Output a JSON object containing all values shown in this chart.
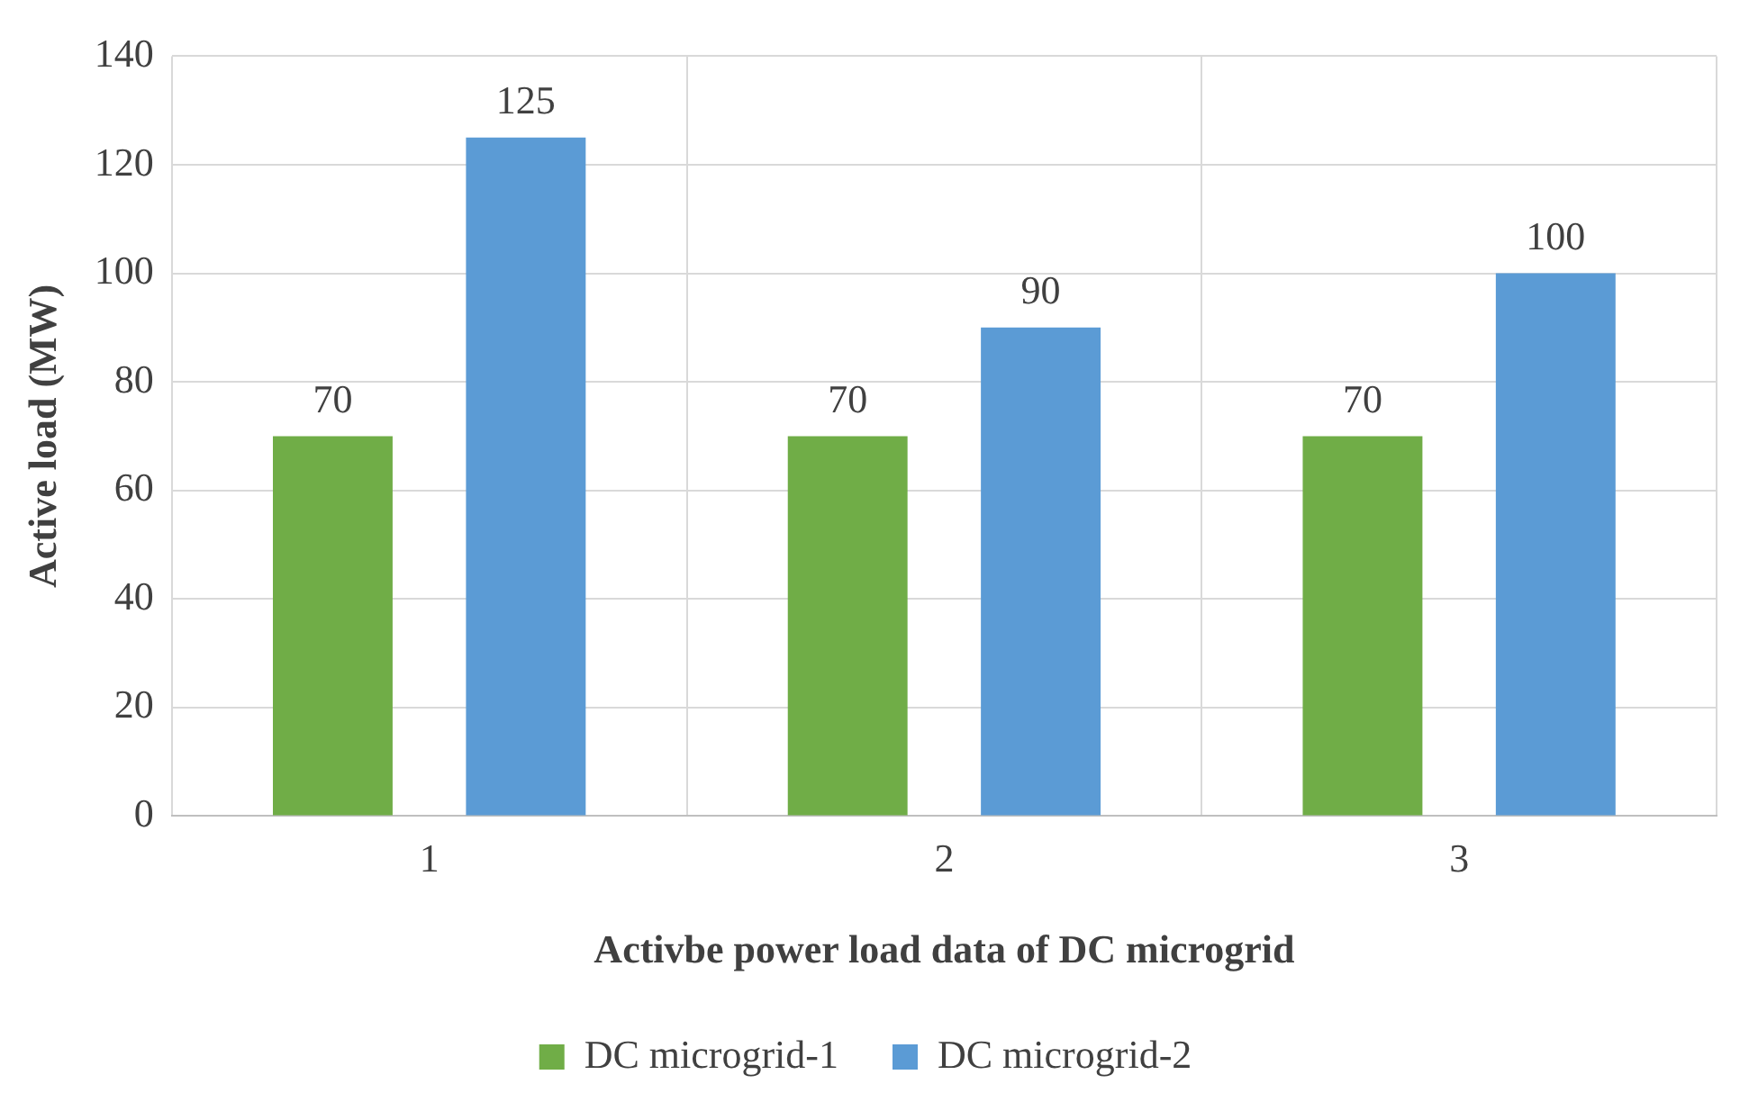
{
  "chart_data": {
    "type": "bar",
    "xlabel": "Activbe power load data of DC microgrid",
    "ylabel": "Active load (MW)",
    "categories": [
      "1",
      "2",
      "3"
    ],
    "series": [
      {
        "name": "DC microgrid-1",
        "color": "#70ad47",
        "values": [
          70,
          70,
          70
        ]
      },
      {
        "name": "DC microgrid-2",
        "color": "#5b9bd5",
        "values": [
          125,
          90,
          100
        ]
      }
    ],
    "ylim": [
      0,
      140
    ],
    "yticks": [
      0,
      20,
      40,
      60,
      80,
      100,
      120,
      140
    ],
    "grid": true,
    "legend": "bottom",
    "data_labels": true
  }
}
